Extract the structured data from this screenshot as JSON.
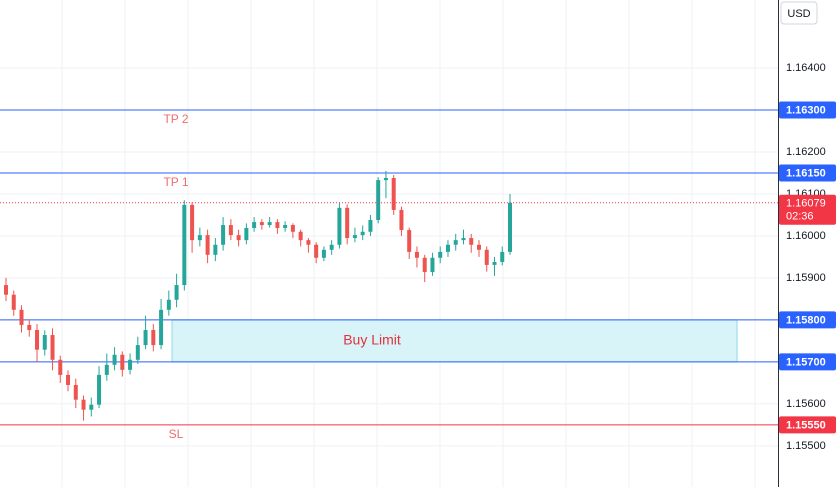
{
  "chart_data": {
    "type": "candlestick",
    "currency": "USD",
    "ylim": [
      1.15402,
      1.16562
    ],
    "yticks": [
      {
        "value": 1.155,
        "label": "1.15500"
      },
      {
        "value": 1.156,
        "label": "1.15600"
      },
      {
        "value": 1.157,
        "label": "1.15700"
      },
      {
        "value": 1.158,
        "label": "1.15800"
      },
      {
        "value": 1.159,
        "label": "1.15900"
      },
      {
        "value": 1.16,
        "label": "1.16000"
      },
      {
        "value": 1.161,
        "label": "1.16100"
      },
      {
        "value": 1.162,
        "label": "1.16200"
      },
      {
        "value": 1.163,
        "label": "1.16300"
      },
      {
        "value": 1.164,
        "label": "1.16400"
      }
    ],
    "grid": true,
    "up_color": "#26a69a",
    "down_color": "#ef5350",
    "open": [
      1.15883,
      1.1586,
      1.15824,
      1.15788,
      1.15776,
      1.15729,
      1.15764,
      1.15705,
      1.15669,
      1.15645,
      1.1561,
      1.15586,
      1.15598,
      1.15669,
      1.15693,
      1.15717,
      1.15681,
      1.15705,
      1.1574,
      1.15776,
      1.1574,
      1.15824,
      1.15848,
      1.15883,
      1.16074,
      1.1599,
      1.16002,
      1.15955,
      1.15979,
      1.16026,
      1.16002,
      1.1599,
      1.16019,
      1.16033,
      1.16026,
      1.16033,
      1.16019,
      1.16026,
      1.1601,
      1.1599,
      1.15979,
      1.15948,
      1.15967,
      1.15979,
      1.16067,
      1.15995,
      1.16002,
      1.1601,
      1.16038,
      1.16133,
      1.16138,
      1.16062,
      1.16014,
      1.15962,
      1.15948,
      1.15914,
      1.15948,
      1.15962,
      1.15979,
      1.1599,
      1.15995,
      1.15979,
      1.15967,
      1.15931,
      1.15938,
      1.15962
    ],
    "high": [
      1.159,
      1.1587,
      1.15835,
      1.158,
      1.1579,
      1.15775,
      1.1578,
      1.15715,
      1.1568,
      1.1566,
      1.1562,
      1.15615,
      1.1569,
      1.1572,
      1.15735,
      1.15725,
      1.1572,
      1.1576,
      1.1581,
      1.1579,
      1.1585,
      1.1587,
      1.1591,
      1.16085,
      1.1608,
      1.1602,
      1.16015,
      1.15995,
      1.16045,
      1.1604,
      1.16015,
      1.1603,
      1.16045,
      1.1604,
      1.16045,
      1.1604,
      1.16035,
      1.1603,
      1.16015,
      1.15995,
      1.15985,
      1.15975,
      1.1599,
      1.1608,
      1.16075,
      1.1602,
      1.16025,
      1.1605,
      1.1614,
      1.16155,
      1.16145,
      1.1607,
      1.1602,
      1.15975,
      1.15955,
      1.1596,
      1.15975,
      1.1599,
      1.16005,
      1.16015,
      1.16005,
      1.1599,
      1.15975,
      1.1595,
      1.15975,
      1.161
    ],
    "low": [
      1.15845,
      1.1581,
      1.1577,
      1.1576,
      1.157,
      1.15715,
      1.1568,
      1.1565,
      1.1563,
      1.1559,
      1.1556,
      1.1557,
      1.1559,
      1.15655,
      1.1568,
      1.15665,
      1.1567,
      1.15695,
      1.1573,
      1.15725,
      1.1573,
      1.1581,
      1.1583,
      1.1587,
      1.1596,
      1.15975,
      1.15935,
      1.1594,
      1.15965,
      1.1599,
      1.15975,
      1.1598,
      1.1601,
      1.16015,
      1.1602,
      1.16005,
      1.1601,
      1.15995,
      1.15975,
      1.1596,
      1.15935,
      1.1594,
      1.15955,
      1.1597,
      1.1598,
      1.15985,
      1.1599,
      1.16,
      1.1603,
      1.1609,
      1.1605,
      1.16,
      1.15945,
      1.15925,
      1.1589,
      1.15905,
      1.15935,
      1.1595,
      1.15965,
      1.1598,
      1.1596,
      1.1595,
      1.15915,
      1.15905,
      1.1593,
      1.15955
    ],
    "close": [
      1.1586,
      1.15824,
      1.15788,
      1.15776,
      1.15729,
      1.15764,
      1.15705,
      1.15669,
      1.15645,
      1.1561,
      1.15586,
      1.15598,
      1.15669,
      1.15693,
      1.15717,
      1.15681,
      1.15705,
      1.1574,
      1.15776,
      1.1574,
      1.15824,
      1.15848,
      1.15883,
      1.16074,
      1.1599,
      1.16002,
      1.15955,
      1.15979,
      1.16026,
      1.16002,
      1.1599,
      1.16019,
      1.16033,
      1.16026,
      1.16033,
      1.16019,
      1.16026,
      1.1601,
      1.1599,
      1.15979,
      1.15948,
      1.15967,
      1.15979,
      1.16067,
      1.15995,
      1.16002,
      1.1601,
      1.16038,
      1.16133,
      1.16138,
      1.16062,
      1.16014,
      1.15962,
      1.15948,
      1.15914,
      1.15948,
      1.15962,
      1.15979,
      1.1599,
      1.15995,
      1.15979,
      1.15967,
      1.15931,
      1.15938,
      1.15962,
      1.16079
    ],
    "levels": [
      {
        "label": "TP 2",
        "price": {
          "value": 1.163,
          "label": "1.16300"
        },
        "color": "#2962ff"
      },
      {
        "label": "TP 1",
        "price": {
          "value": 1.1615,
          "label": "1.16150"
        },
        "color": "#2962ff"
      },
      {
        "label": "SL",
        "price": {
          "value": 1.1555,
          "label": "1.15550"
        },
        "color": "#f23645"
      }
    ],
    "zone": {
      "label": "Buy Limit",
      "top": {
        "value": 1.158,
        "label": "1.15800"
      },
      "bottom": {
        "value": 1.157,
        "label": "1.15700"
      },
      "color": "#2962ff"
    },
    "current_price": {
      "value": 1.16079,
      "countdown": "02:36",
      "color": "#f23645"
    }
  }
}
